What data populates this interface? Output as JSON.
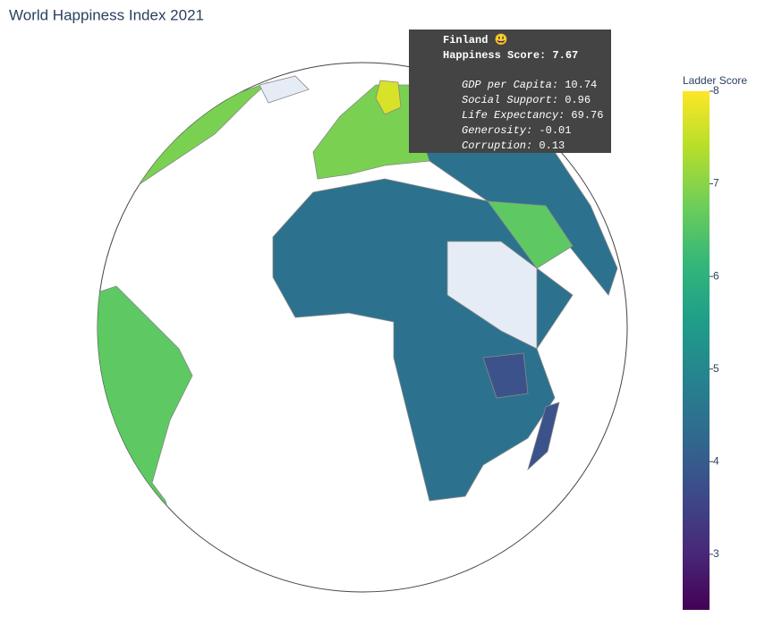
{
  "chart_data": {
    "type": "choropleth",
    "title": "World Happiness Index 2021",
    "colorbar": {
      "title": "Ladder Score",
      "clim": [
        2.4,
        8
      ],
      "ticks": [
        3,
        4,
        5,
        6,
        7,
        8
      ]
    },
    "hover": {
      "country": "Finland 😃",
      "score": {
        "label": "Happiness Score:",
        "value": 7.67
      },
      "details": [
        {
          "label": "GDP per Capita:",
          "value": 10.74
        },
        {
          "label": "Social Support:",
          "value": 0.96
        },
        {
          "label": "Life Expectancy:",
          "value": 69.76
        },
        {
          "label": "Generosity:",
          "value": -0.01
        },
        {
          "label": "Corruption:",
          "value": 0.13
        }
      ]
    }
  }
}
